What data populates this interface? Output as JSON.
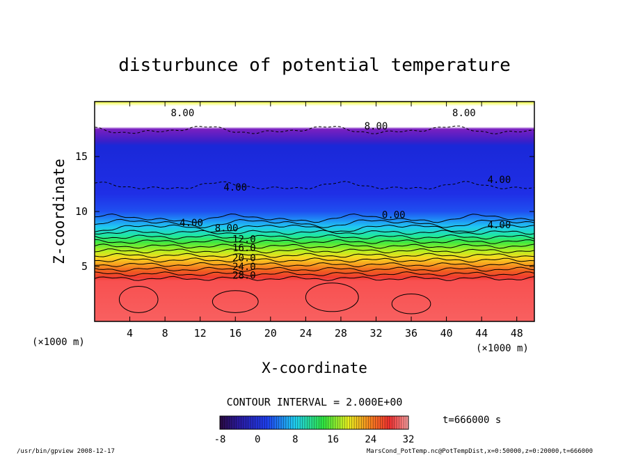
{
  "chart_data": {
    "type": "heatmap",
    "title": "disturbunce of potential temperature",
    "xlabel": "X-coordinate",
    "ylabel": "Z-coordinate",
    "x_unit": "(×1000 m)",
    "x_unit_right": "(×1000 m)",
    "x_ticks": [
      4,
      8,
      12,
      16,
      20,
      24,
      28,
      32,
      36,
      40,
      44,
      48
    ],
    "y_ticks": [
      5,
      10,
      15
    ],
    "xlim": [
      0,
      50
    ],
    "ylim": [
      0,
      20
    ],
    "contour_labels": [
      {
        "text": "8.00",
        "x": 10,
        "z": 19.0
      },
      {
        "text": "8.00",
        "x": 42,
        "z": 19.0
      },
      {
        "text": "8.00",
        "x": 32,
        "z": 17.8
      },
      {
        "text": "4.00",
        "x": 16,
        "z": 12.2
      },
      {
        "text": "4.00",
        "x": 46,
        "z": 12.9
      },
      {
        "text": "4.00",
        "x": 11,
        "z": 9.0
      },
      {
        "text": "8.00",
        "x": 15,
        "z": 8.5
      },
      {
        "text": "0.00",
        "x": 34,
        "z": 9.7
      },
      {
        "text": "4.00",
        "x": 46,
        "z": 8.8
      },
      {
        "text": "12.0",
        "x": 17,
        "z": 7.5
      },
      {
        "text": "16.0",
        "x": 17,
        "z": 6.7
      },
      {
        "text": "20.0",
        "x": 17,
        "z": 5.8
      },
      {
        "text": "24.0",
        "x": 17,
        "z": 5.0
      },
      {
        "text": "28.0",
        "x": 17,
        "z": 4.2
      }
    ],
    "contour_interval_label": "CONTOUR INTERVAL = 2.000E+00",
    "colorbar": {
      "ticks": [
        "-8",
        "0",
        "8",
        "16",
        "24",
        "32"
      ],
      "range": [
        -8,
        32
      ]
    },
    "time_label": "t=666000 s"
  },
  "footer": {
    "left": "/usr/bin/gpview   2008-12-17",
    "right": "MarsCond_PotTemp.nc@PotTempDist,x=0:50000,z=0:20000,t=666000"
  },
  "colors": {
    "background": "#ffffff",
    "frame": "#000000"
  }
}
